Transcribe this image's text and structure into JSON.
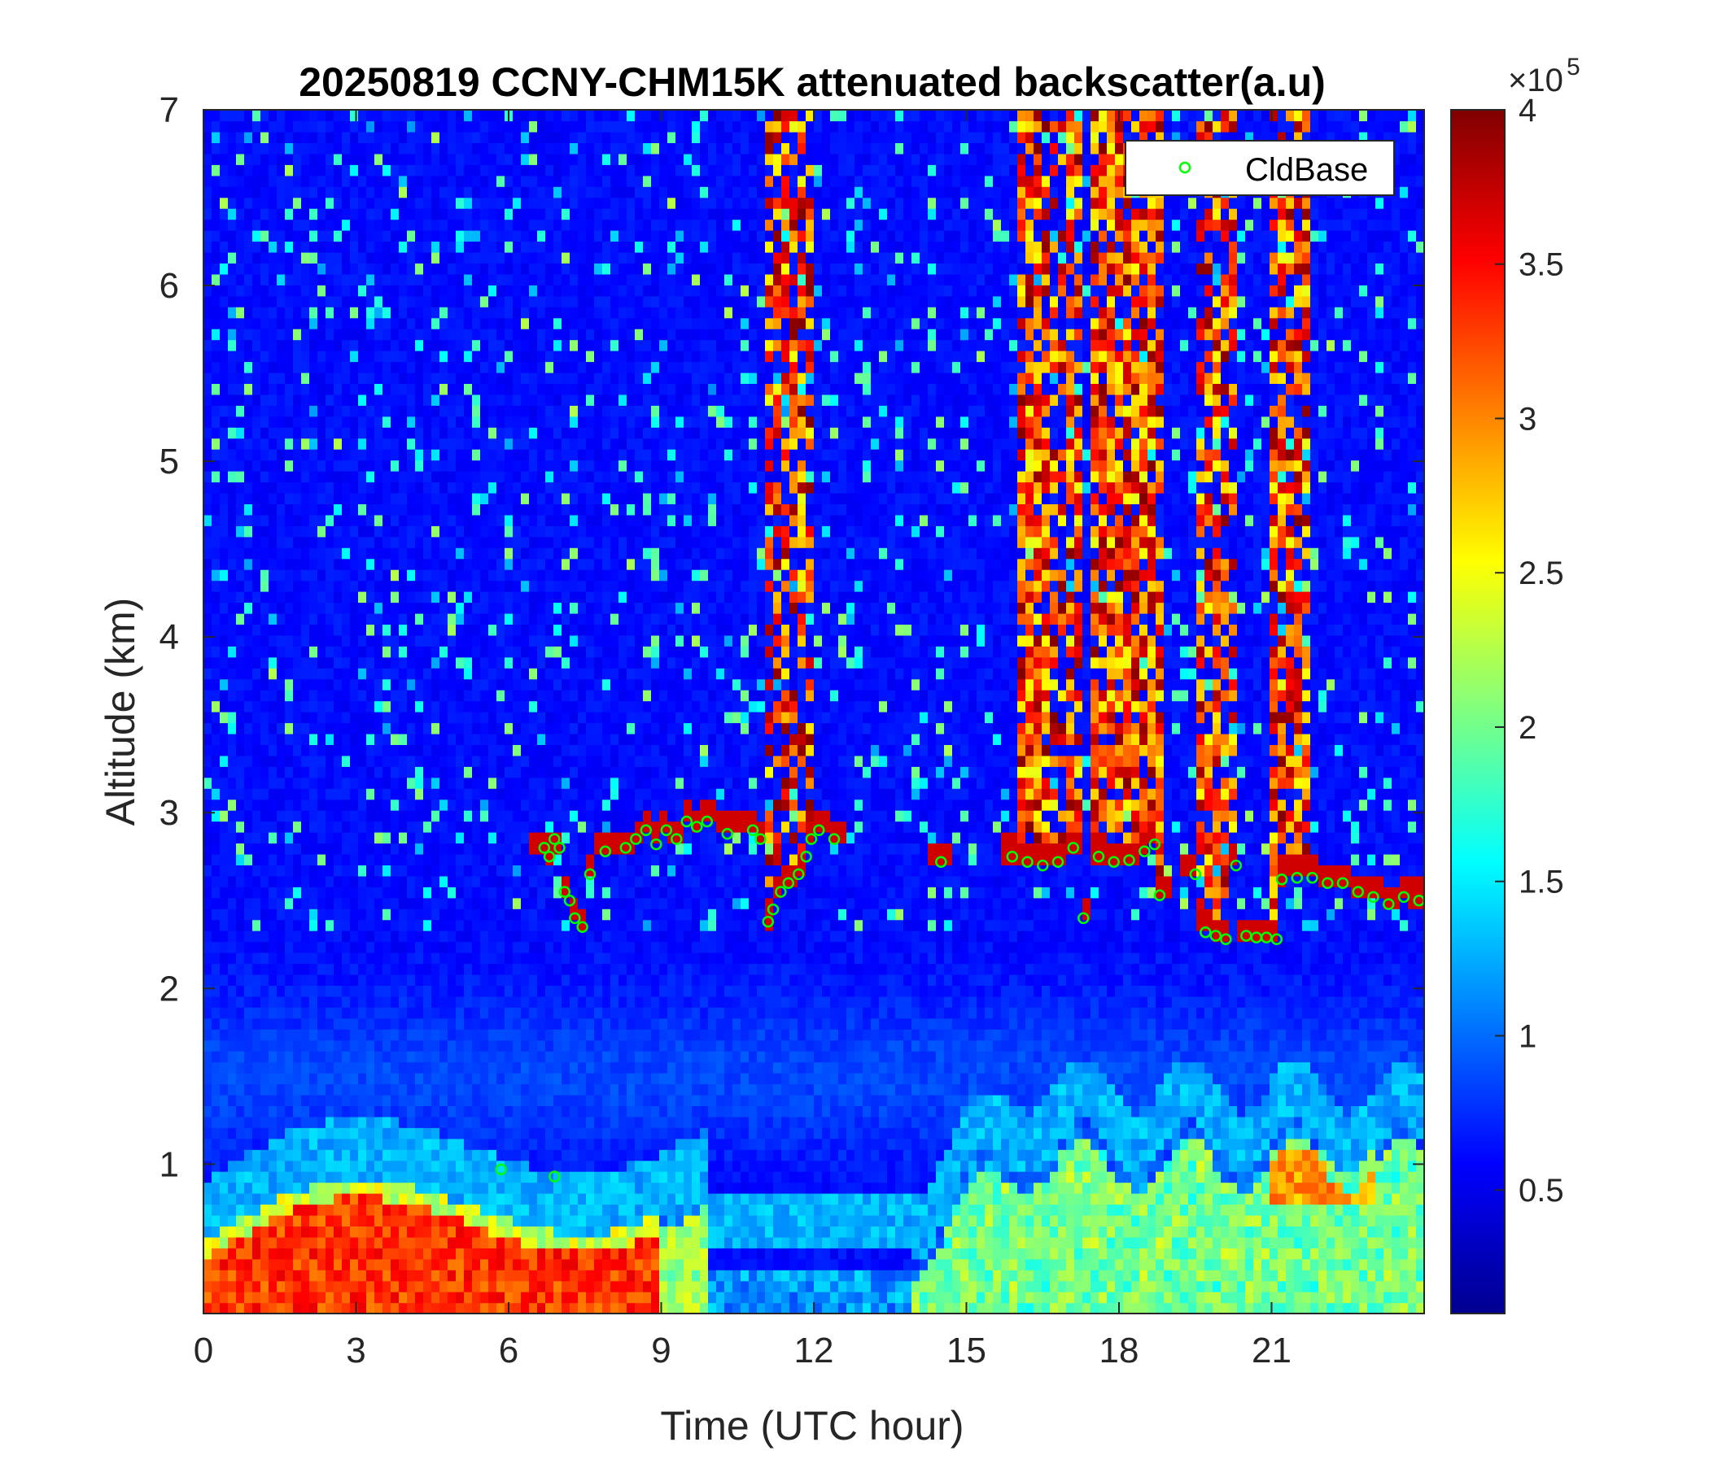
{
  "chart_data": {
    "type": "heatmap",
    "title": "20250819 CCNY-CHM15K attenuated backscatter(a.u)",
    "xlabel": "Time (UTC hour)",
    "ylabel": "Altitude (km)",
    "xlim": [
      0,
      24
    ],
    "ylim": [
      0.15,
      7
    ],
    "xticks": [
      0,
      3,
      6,
      9,
      12,
      15,
      18,
      21
    ],
    "xtick_labels": [
      "0",
      "3",
      "6",
      "9",
      "12",
      "15",
      "18",
      "21"
    ],
    "yticks": [
      1,
      2,
      3,
      4,
      5,
      6,
      7
    ],
    "ytick_labels": [
      "1",
      "2",
      "3",
      "4",
      "5",
      "6",
      "7"
    ],
    "colorbar": {
      "colormap": "jet",
      "clim": [
        0.1,
        4
      ],
      "ticks": [
        0.5,
        1,
        1.5,
        2,
        2.5,
        3,
        3.5,
        4
      ],
      "tick_labels": [
        "0.5",
        "1",
        "1.5",
        "2",
        "2.5",
        "3",
        "3.5",
        "4"
      ],
      "exponent_base": "×10",
      "exponent": "5"
    },
    "legend": {
      "position": "top-right",
      "entries": [
        "CldBase"
      ]
    },
    "series": [
      {
        "name": "CldBase",
        "marker": "circle",
        "color": "#00ff00",
        "points": [
          [
            6.7,
            2.8
          ],
          [
            6.8,
            2.75
          ],
          [
            6.9,
            2.85
          ],
          [
            7.0,
            2.8
          ],
          [
            7.1,
            2.55
          ],
          [
            7.2,
            2.5
          ],
          [
            7.3,
            2.4
          ],
          [
            7.45,
            2.35
          ],
          [
            7.6,
            2.65
          ],
          [
            7.9,
            2.78
          ],
          [
            8.3,
            2.8
          ],
          [
            8.5,
            2.85
          ],
          [
            8.7,
            2.9
          ],
          [
            8.9,
            2.82
          ],
          [
            9.1,
            2.9
          ],
          [
            9.3,
            2.85
          ],
          [
            9.5,
            2.95
          ],
          [
            9.7,
            2.92
          ],
          [
            9.9,
            2.95
          ],
          [
            10.3,
            2.88
          ],
          [
            10.8,
            2.9
          ],
          [
            10.95,
            2.85
          ],
          [
            11.1,
            2.38
          ],
          [
            11.2,
            2.45
          ],
          [
            11.35,
            2.55
          ],
          [
            11.5,
            2.6
          ],
          [
            11.7,
            2.65
          ],
          [
            11.85,
            2.75
          ],
          [
            11.95,
            2.85
          ],
          [
            12.1,
            2.9
          ],
          [
            12.4,
            2.85
          ],
          [
            14.5,
            2.72
          ],
          [
            15.9,
            2.75
          ],
          [
            16.2,
            2.72
          ],
          [
            16.5,
            2.7
          ],
          [
            16.8,
            2.72
          ],
          [
            17.1,
            2.8
          ],
          [
            17.3,
            2.4
          ],
          [
            17.6,
            2.75
          ],
          [
            17.9,
            2.72
          ],
          [
            18.2,
            2.73
          ],
          [
            18.5,
            2.78
          ],
          [
            18.7,
            2.82
          ],
          [
            18.8,
            2.53
          ],
          [
            19.5,
            2.65
          ],
          [
            19.7,
            2.32
          ],
          [
            19.9,
            2.3
          ],
          [
            20.1,
            2.28
          ],
          [
            20.3,
            2.7
          ],
          [
            20.5,
            2.3
          ],
          [
            20.7,
            2.29
          ],
          [
            20.9,
            2.29
          ],
          [
            21.1,
            2.28
          ],
          [
            21.2,
            2.62
          ],
          [
            21.5,
            2.63
          ],
          [
            21.8,
            2.63
          ],
          [
            22.1,
            2.6
          ],
          [
            22.4,
            2.6
          ],
          [
            22.7,
            2.55
          ],
          [
            23.0,
            2.52
          ],
          [
            23.3,
            2.48
          ],
          [
            23.6,
            2.52
          ],
          [
            23.9,
            2.5
          ],
          [
            5.85,
            0.97
          ],
          [
            6.9,
            0.93
          ]
        ]
      }
    ]
  }
}
